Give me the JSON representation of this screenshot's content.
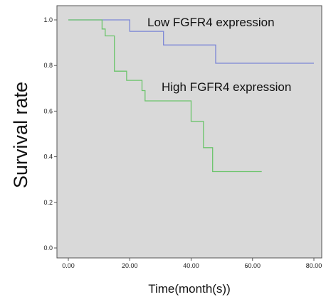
{
  "chart_data": {
    "type": "line",
    "step": true,
    "xlabel": "Time(month(s))",
    "ylabel": "Survival rate",
    "xlim": [
      0,
      80
    ],
    "ylim": [
      0,
      1.0
    ],
    "x_ticks": [
      0,
      20,
      40,
      60,
      80
    ],
    "x_tick_labels": [
      "0.00",
      "20.00",
      "40.00",
      "60.00",
      "80.00"
    ],
    "y_ticks": [
      0,
      0.2,
      0.4,
      0.6,
      0.8,
      1.0
    ],
    "y_tick_labels": [
      "0.0",
      "0.2",
      "0.4",
      "0.6",
      "0.8",
      "1.0"
    ],
    "grid": false,
    "plot_background": "#d9d9d9",
    "series": [
      {
        "name": "Low FGFR4 expression",
        "color": "#7b86d6",
        "points": [
          [
            0,
            1.0
          ],
          [
            20,
            1.0
          ],
          [
            20,
            0.95
          ],
          [
            31,
            0.95
          ],
          [
            31,
            0.89
          ],
          [
            48,
            0.89
          ],
          [
            48,
            0.81
          ],
          [
            80,
            0.81
          ]
        ]
      },
      {
        "name": "High FGFR4 expression",
        "color": "#6cc46c",
        "points": [
          [
            0,
            1.0
          ],
          [
            11,
            1.0
          ],
          [
            11,
            0.96
          ],
          [
            12,
            0.96
          ],
          [
            12,
            0.93
          ],
          [
            15,
            0.93
          ],
          [
            15,
            0.775
          ],
          [
            19,
            0.775
          ],
          [
            19,
            0.735
          ],
          [
            24,
            0.735
          ],
          [
            24,
            0.69
          ],
          [
            25,
            0.69
          ],
          [
            25,
            0.645
          ],
          [
            40,
            0.645
          ],
          [
            40,
            0.555
          ],
          [
            44,
            0.555
          ],
          [
            44,
            0.44
          ],
          [
            47,
            0.44
          ],
          [
            47,
            0.335
          ],
          [
            63,
            0.335
          ]
        ]
      }
    ]
  }
}
